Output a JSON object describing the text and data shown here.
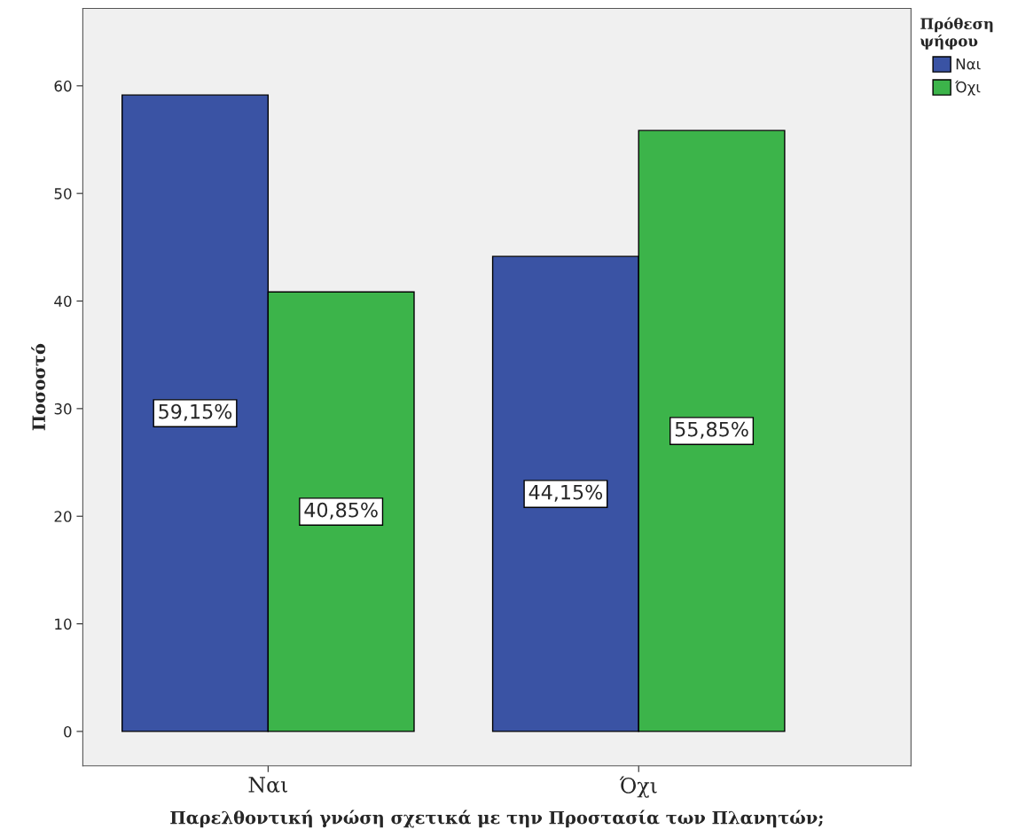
{
  "chart_data": {
    "type": "bar",
    "xlabel": "Παρελθοντική γνώση σχετικά με την Προστασία των Πλανητών;",
    "ylabel": "Ποσοστό",
    "legend_title": "Πρόθεση\nψήφου",
    "categories": [
      "Ναι",
      "Όχι"
    ],
    "series": [
      {
        "name": "Ναι",
        "color": "#3a53a4",
        "values": [
          59.15,
          44.15
        ],
        "value_labels": [
          "59,15%",
          "44,15%"
        ]
      },
      {
        "name": "Όχι",
        "color": "#3cb44a",
        "values": [
          40.85,
          55.85
        ],
        "value_labels": [
          "40,85%",
          "55,85%"
        ]
      }
    ],
    "ylim": [
      -3.2,
      67.2
    ],
    "yticks": [
      0,
      10,
      20,
      30,
      40,
      50,
      60
    ],
    "grid": false,
    "legend": "top right"
  }
}
